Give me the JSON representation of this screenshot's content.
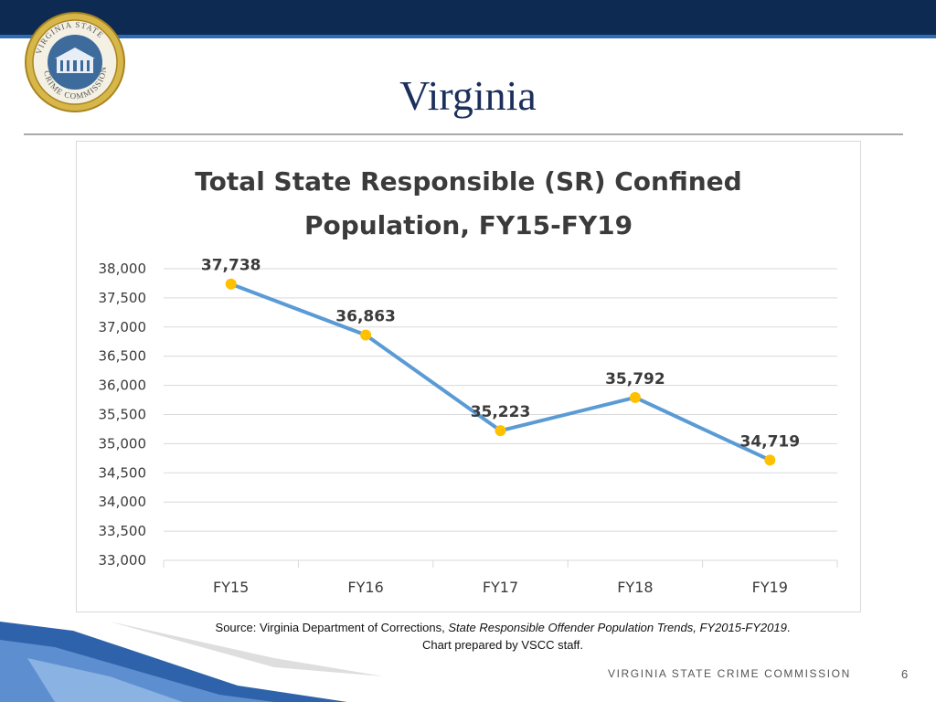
{
  "slide": {
    "title": "Virginia",
    "seal_text": "VIRGINIA STATE CRIME COMMISSION",
    "source_line1_prefix": "Source: Virginia Department of Corrections, ",
    "source_line1_italic": "State Responsible Offender Population Trends, FY2015-FY2019",
    "source_line1_suffix": ".",
    "source_line2": "Chart prepared by VSCC staff.",
    "footer": "VIRGINIA STATE CRIME COMMISSION",
    "page_number": "6"
  },
  "colors": {
    "header_bar": "#0d2a52",
    "accent_blue": "#2f6cb5",
    "series_line": "#5b9bd5",
    "marker": "#ffc000",
    "seal_gold": "#c9a227"
  },
  "chart_data": {
    "type": "line",
    "title_line1": "Total State Responsible  (SR) Confined",
    "title_line2": "Population,  FY15-FY19",
    "categories": [
      "FY15",
      "FY16",
      "FY17",
      "FY18",
      "FY19"
    ],
    "values": [
      37738,
      36863,
      35223,
      35792,
      34719
    ],
    "data_labels": [
      "37,738",
      "36,863",
      "35,223",
      "35,792",
      "34,719"
    ],
    "ylim": [
      33000,
      38000
    ],
    "yticks": [
      33000,
      33500,
      34000,
      34500,
      35000,
      35500,
      36000,
      36500,
      37000,
      37500,
      38000
    ],
    "ytick_labels": [
      "33,000",
      "33,500",
      "34,000",
      "34,500",
      "35,000",
      "35,500",
      "36,000",
      "36,500",
      "37,000",
      "37,500",
      "38,000"
    ],
    "grid": true,
    "legend": "none"
  }
}
